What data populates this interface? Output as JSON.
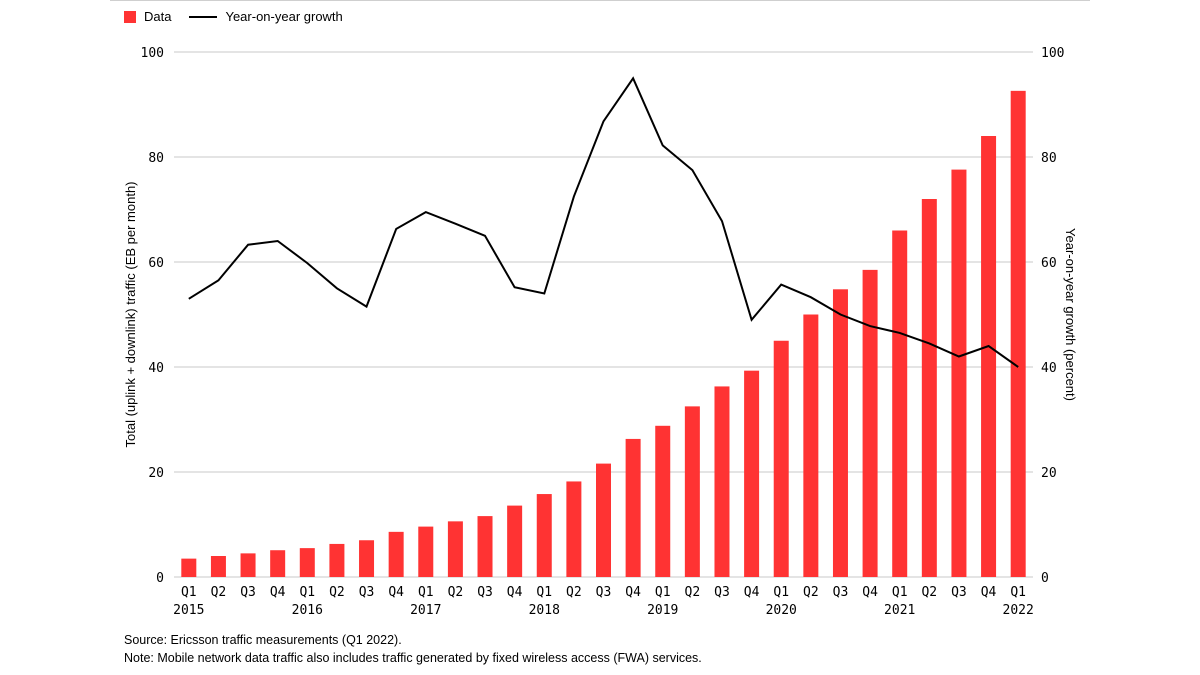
{
  "legend": {
    "data_label": "Data",
    "growth_label": "Year-on-year growth"
  },
  "footer": {
    "source": "Source: Ericsson traffic measurements (Q1 2022).",
    "note": "Note: Mobile network data traffic also includes traffic generated by fixed wireless access (FWA) services."
  },
  "chart_data": {
    "type": "bar",
    "title": "",
    "ylabel": "Total (uplink + downlink) traffic (EB per month)",
    "y2label": "Year-on-year growth (percent)",
    "ylim": [
      0,
      100
    ],
    "y2lim": [
      0,
      100
    ],
    "yticks": [
      0,
      20,
      40,
      60,
      80,
      100
    ],
    "y2ticks": [
      0,
      20,
      40,
      60,
      80,
      100
    ],
    "grid": true,
    "legend_position": "top-left",
    "categories": [
      "Q1",
      "Q2",
      "Q3",
      "Q4",
      "Q1",
      "Q2",
      "Q3",
      "Q4",
      "Q1",
      "Q2",
      "Q3",
      "Q4",
      "Q1",
      "Q2",
      "Q3",
      "Q4",
      "Q1",
      "Q2",
      "Q3",
      "Q4",
      "Q1",
      "Q2",
      "Q3",
      "Q4",
      "Q1",
      "Q2",
      "Q3",
      "Q4",
      "Q1"
    ],
    "years": [
      {
        "label": "2015",
        "index": 0
      },
      {
        "label": "2016",
        "index": 4
      },
      {
        "label": "2017",
        "index": 8
      },
      {
        "label": "2018",
        "index": 12
      },
      {
        "label": "2019",
        "index": 16
      },
      {
        "label": "2020",
        "index": 20
      },
      {
        "label": "2021",
        "index": 24
      },
      {
        "label": "2022",
        "index": 28
      }
    ],
    "series": [
      {
        "name": "Data",
        "kind": "bar",
        "axis": "left",
        "color": "#ff3333",
        "values": [
          3.5,
          4.0,
          4.5,
          5.1,
          5.5,
          6.3,
          7.0,
          8.6,
          9.6,
          10.6,
          11.6,
          13.6,
          15.8,
          18.2,
          21.6,
          26.3,
          28.8,
          32.5,
          36.3,
          39.3,
          45.0,
          50.0,
          54.8,
          58.5,
          66.0,
          72.0,
          77.6,
          84.0,
          92.6
        ]
      },
      {
        "name": "Year-on-year growth",
        "kind": "line",
        "axis": "right",
        "color": "#000000",
        "values": [
          53,
          56.5,
          63.3,
          64,
          59.8,
          55,
          51.5,
          66.3,
          69.5,
          67.3,
          65,
          55.2,
          54,
          72.5,
          86.8,
          95,
          82.2,
          77.5,
          67.8,
          49,
          55.7,
          53.3,
          50,
          47.8,
          46.5,
          44.5,
          42,
          44,
          40
        ]
      }
    ]
  }
}
